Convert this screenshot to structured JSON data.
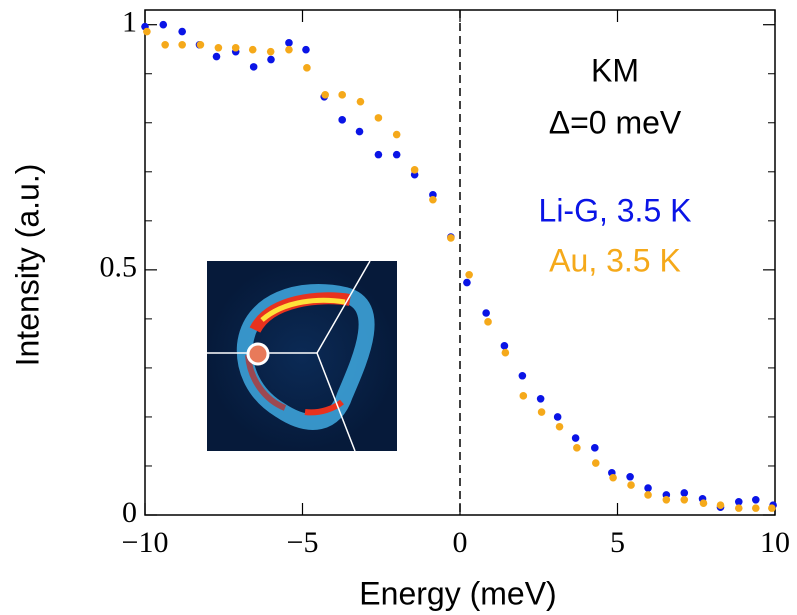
{
  "chart_data": {
    "type": "scatter",
    "xlabel": "Energy (meV)",
    "ylabel": "Intensity (a.u.)",
    "annotations": [
      "KM",
      "Δ=0 meV"
    ],
    "xlim": [
      -10,
      10
    ],
    "ylim": [
      0,
      1.03
    ],
    "xticks": [
      {
        "value": -10,
        "label": "−10"
      },
      {
        "value": -5,
        "label": "−5"
      },
      0,
      5,
      10
    ],
    "yticks": [
      0,
      0.5,
      1
    ],
    "yminorticks": [
      0.1,
      0.2,
      0.3,
      0.4,
      0.6,
      0.7,
      0.8,
      0.9
    ],
    "vlines": [
      0
    ],
    "legend": "upper right",
    "series": [
      {
        "name": "Li-G, 3.5 K",
        "color": "#0a14e6",
        "x": [
          -10.0,
          -9.42,
          -8.82,
          -8.27,
          -7.73,
          -7.12,
          -6.55,
          -6.0,
          -5.43,
          -4.89,
          -4.31,
          -3.74,
          -3.19,
          -2.59,
          -2.01,
          -1.44,
          -0.86,
          -0.29,
          0.22,
          0.83,
          1.41,
          1.98,
          2.56,
          3.1,
          3.67,
          4.28,
          4.82,
          5.4,
          5.97,
          6.55,
          7.12,
          7.7,
          8.27,
          8.85,
          9.39,
          9.94
        ],
        "values": [
          0.996,
          1.0,
          0.986,
          0.959,
          0.935,
          0.945,
          0.914,
          0.929,
          0.963,
          0.949,
          0.853,
          0.806,
          0.782,
          0.735,
          0.735,
          0.694,
          0.653,
          0.567,
          0.474,
          0.412,
          0.345,
          0.284,
          0.237,
          0.2,
          0.157,
          0.137,
          0.086,
          0.078,
          0.055,
          0.041,
          0.045,
          0.033,
          0.016,
          0.027,
          0.031,
          0.02
        ]
      },
      {
        "name": "Au, 3.5 K",
        "color": "#f5a91a",
        "x": [
          -9.94,
          -9.36,
          -8.82,
          -8.24,
          -7.67,
          -7.12,
          -6.58,
          -6.01,
          -5.43,
          -4.86,
          -4.28,
          -3.74,
          -3.16,
          -2.59,
          -2.01,
          -1.44,
          -0.86,
          -0.29,
          0.29,
          0.89,
          1.44,
          2.01,
          2.59,
          3.16,
          3.71,
          4.31,
          4.86,
          5.43,
          5.97,
          6.55,
          7.12,
          7.73,
          8.27,
          8.85,
          9.39,
          9.9
        ],
        "values": [
          0.986,
          0.959,
          0.959,
          0.959,
          0.953,
          0.953,
          0.949,
          0.945,
          0.949,
          0.912,
          0.857,
          0.857,
          0.843,
          0.81,
          0.776,
          0.704,
          0.643,
          0.565,
          0.49,
          0.394,
          0.331,
          0.243,
          0.21,
          0.18,
          0.137,
          0.106,
          0.076,
          0.061,
          0.041,
          0.031,
          0.031,
          0.024,
          0.02,
          0.014,
          0.014,
          0.014
        ]
      }
    ]
  }
}
